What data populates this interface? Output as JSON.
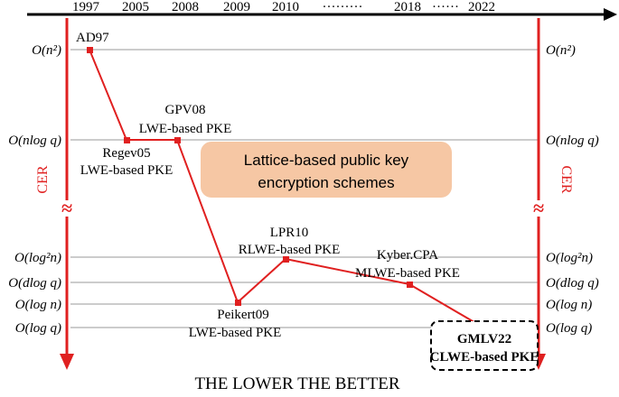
{
  "years": [
    "1997",
    "2005",
    "2008",
    "2009",
    "2010",
    "·········",
    "2018",
    "······",
    "2022"
  ],
  "complexity_levels": [
    "O(n²)",
    "O(nlog q)",
    "O(log²n)",
    "O(dlog q)",
    "O(log n)",
    "O(log q)"
  ],
  "axis_label": "CER",
  "break_symbol": "≈",
  "schemes": [
    {
      "id": "ad97",
      "lines": [
        "AD97"
      ],
      "level": "O(n²)",
      "year": "1997"
    },
    {
      "id": "regev05",
      "lines": [
        "Regev05",
        "LWE-based PKE"
      ],
      "level": "O(nlog q)",
      "year": "2005"
    },
    {
      "id": "gpv08",
      "lines": [
        "GPV08",
        "LWE-based PKE"
      ],
      "level": "O(nlog q)",
      "year": "2008"
    },
    {
      "id": "peikert09",
      "lines": [
        "Peikert09",
        "LWE-based PKE"
      ],
      "level": "O(log n)",
      "year": "2009"
    },
    {
      "id": "lpr10",
      "lines": [
        "LPR10",
        "RLWE-based PKE"
      ],
      "level": "O(log²n)",
      "year": "2010"
    },
    {
      "id": "kyber",
      "lines": [
        "Kyber.CPA",
        "MLWE-based PKE"
      ],
      "level": "O(dlog q)",
      "year": "2018"
    },
    {
      "id": "gmlv22",
      "lines": [
        "GMLV22",
        "CLWE-based PKE"
      ],
      "level": "O(log q)",
      "year": "2022",
      "highlight": true
    }
  ],
  "center_box": [
    "Lattice-based public key",
    "encryption schemes"
  ],
  "caption": "THE LOWER THE BETTER",
  "colors": {
    "accent": "#e02020",
    "box_fill": "#f6c7a4",
    "grid": "#9a9a9a",
    "axis": "#000000"
  }
}
